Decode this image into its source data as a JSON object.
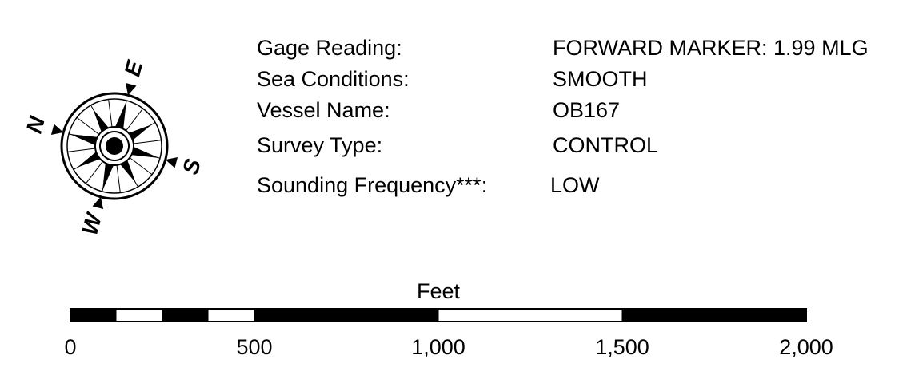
{
  "compass": {
    "north": "N",
    "east": "E",
    "south": "S",
    "west": "W"
  },
  "info": {
    "rows": [
      {
        "label": "Gage Reading:",
        "value": "FORWARD MARKER: 1.99 MLG"
      },
      {
        "label": "Sea Conditions:",
        "value": "SMOOTH"
      },
      {
        "label": "Vessel Name:",
        "value": "OB167"
      },
      {
        "label": "Survey Type:",
        "value": "CONTROL"
      },
      {
        "label": "Sounding Frequency***:",
        "value": "LOW"
      }
    ]
  },
  "scale_bar": {
    "unit": "Feet",
    "ticks": [
      0,
      500,
      {
        "value": 1000,
        "label": "1,000"
      },
      {
        "value": 1500,
        "label": "1,500"
      },
      {
        "value": 2000,
        "label": "2,000"
      }
    ]
  }
}
